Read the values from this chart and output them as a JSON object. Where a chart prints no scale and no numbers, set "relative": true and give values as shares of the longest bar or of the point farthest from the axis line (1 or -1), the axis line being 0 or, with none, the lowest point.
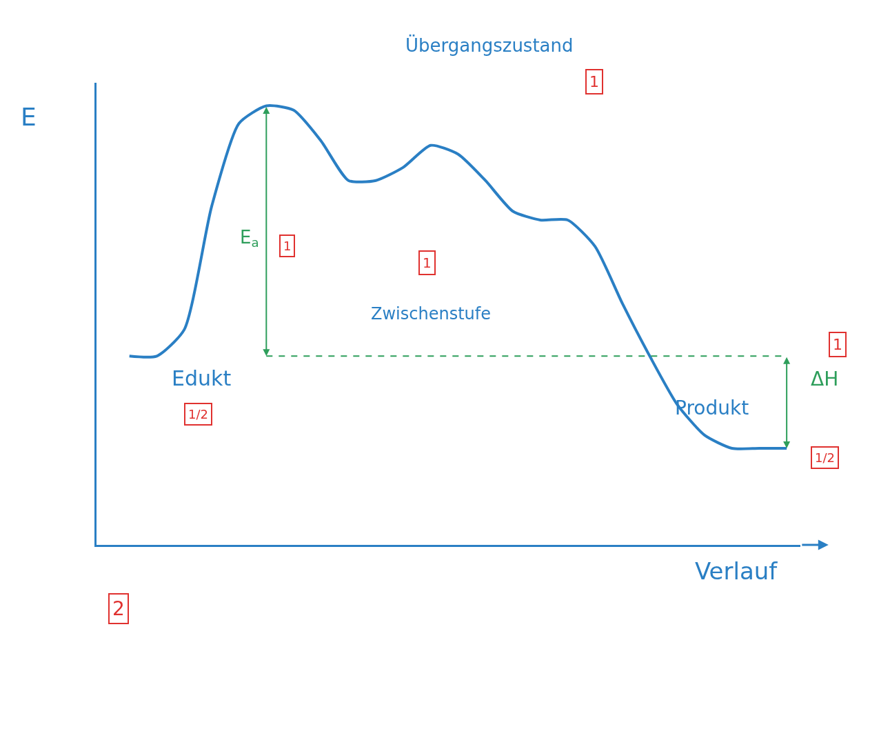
{
  "chart_data": {
    "type": "line",
    "relative": true,
    "xlabel": "Verlauf",
    "ylabel": "E",
    "categories": [
      null,
      null,
      null,
      null,
      null,
      null,
      null,
      null,
      null,
      null,
      null,
      null,
      null,
      null,
      null,
      null,
      null,
      null,
      null,
      null,
      null,
      null,
      null,
      null,
      null
    ],
    "series": [
      {
        "color": "#2a7fc4",
        "values": [
          0.43,
          0.43,
          0.49,
          0.77,
          0.96,
          1,
          0.99,
          0.92,
          0.83,
          0.83,
          0.86,
          0.91,
          0.89,
          0.83,
          0.76,
          0.74,
          0.74,
          0.68,
          0.55,
          0.43,
          0.32,
          0.25,
          0.22,
          0.22,
          0.22
        ]
      }
    ],
    "ref_lines": [
      {
        "axis": "y",
        "value": 0.43,
        "color": "#2e9e5b",
        "line_style": "dashed"
      }
    ],
    "annotations": [
      "Übergangszustand",
      "1",
      "E$_{a}$",
      "1",
      "1",
      "Zwischenstufe",
      "Edukt",
      "1/2",
      "1",
      "ΔH",
      "Produkt",
      "1/2",
      "2"
    ],
    "marker": "none",
    "line_style": "solid"
  }
}
